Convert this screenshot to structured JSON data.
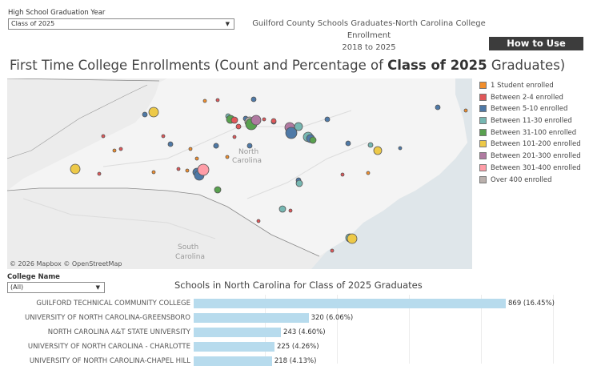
{
  "filters": {
    "grad_year_label": "High School Graduation Year",
    "grad_year_value": "Class of 2025",
    "college_label": "College Name",
    "college_value": "(All)"
  },
  "report": {
    "title_line1": "Guilford County Schools Graduates-North Carolina College Enrollment",
    "title_line2": "2018 to 2025",
    "help_button": "How to Use"
  },
  "map": {
    "title_prefix": "First Time College Enrollments  (Count and Percentage of ",
    "title_bold": "Class of 2025",
    "title_suffix": " Graduates)",
    "label_north": "North",
    "label_carolina": "Carolina",
    "label_south": "South",
    "label_carolina2": "Carolina",
    "credit": "© 2026 Mapbox  © OpenStreetMap"
  },
  "legend": [
    {
      "label": "1 Student enrolled",
      "color": "#f28e2b"
    },
    {
      "label": "Between 2-4 enrolled",
      "color": "#e15759"
    },
    {
      "label": "Between 5-10 enrolled",
      "color": "#4e79a7"
    },
    {
      "label": "Between 11-30 enrolled",
      "color": "#76b7b2"
    },
    {
      "label": "Between 31-100 enrolled",
      "color": "#59a14f"
    },
    {
      "label": "Between 101-200 enrolled",
      "color": "#edc948"
    },
    {
      "label": "Between 201-300 enrolled",
      "color": "#b07aa1"
    },
    {
      "label": "Between 301-400 enrolled",
      "color": "#ff9da7"
    },
    {
      "label": "Over 400 enrolled",
      "color": "#bab0ac"
    }
  ],
  "bar_chart": {
    "title": "Schools in North Carolina for Class of 2025 Graduates",
    "rows": [
      {
        "name": "GUILFORD TECHNICAL COMMUNITY COLLEGE",
        "value": 869,
        "label": "869 (16.45%)"
      },
      {
        "name": "UNIVERSITY OF NORTH CAROLINA-GREENSBORO",
        "value": 320,
        "label": "320 (6.06%)"
      },
      {
        "name": "NORTH CAROLINA A&T STATE UNIVERSITY",
        "value": 243,
        "label": "243 (4.60%)"
      },
      {
        "name": "UNIVERSITY OF NORTH CAROLINA - CHARLOTTE",
        "value": 225,
        "label": "225 (4.26%)"
      },
      {
        "name": "UNIVERSITY OF NORTH CAROLINA-CHAPEL HILL",
        "value": 218,
        "label": "218 (4.13%)"
      }
    ]
  }
}
